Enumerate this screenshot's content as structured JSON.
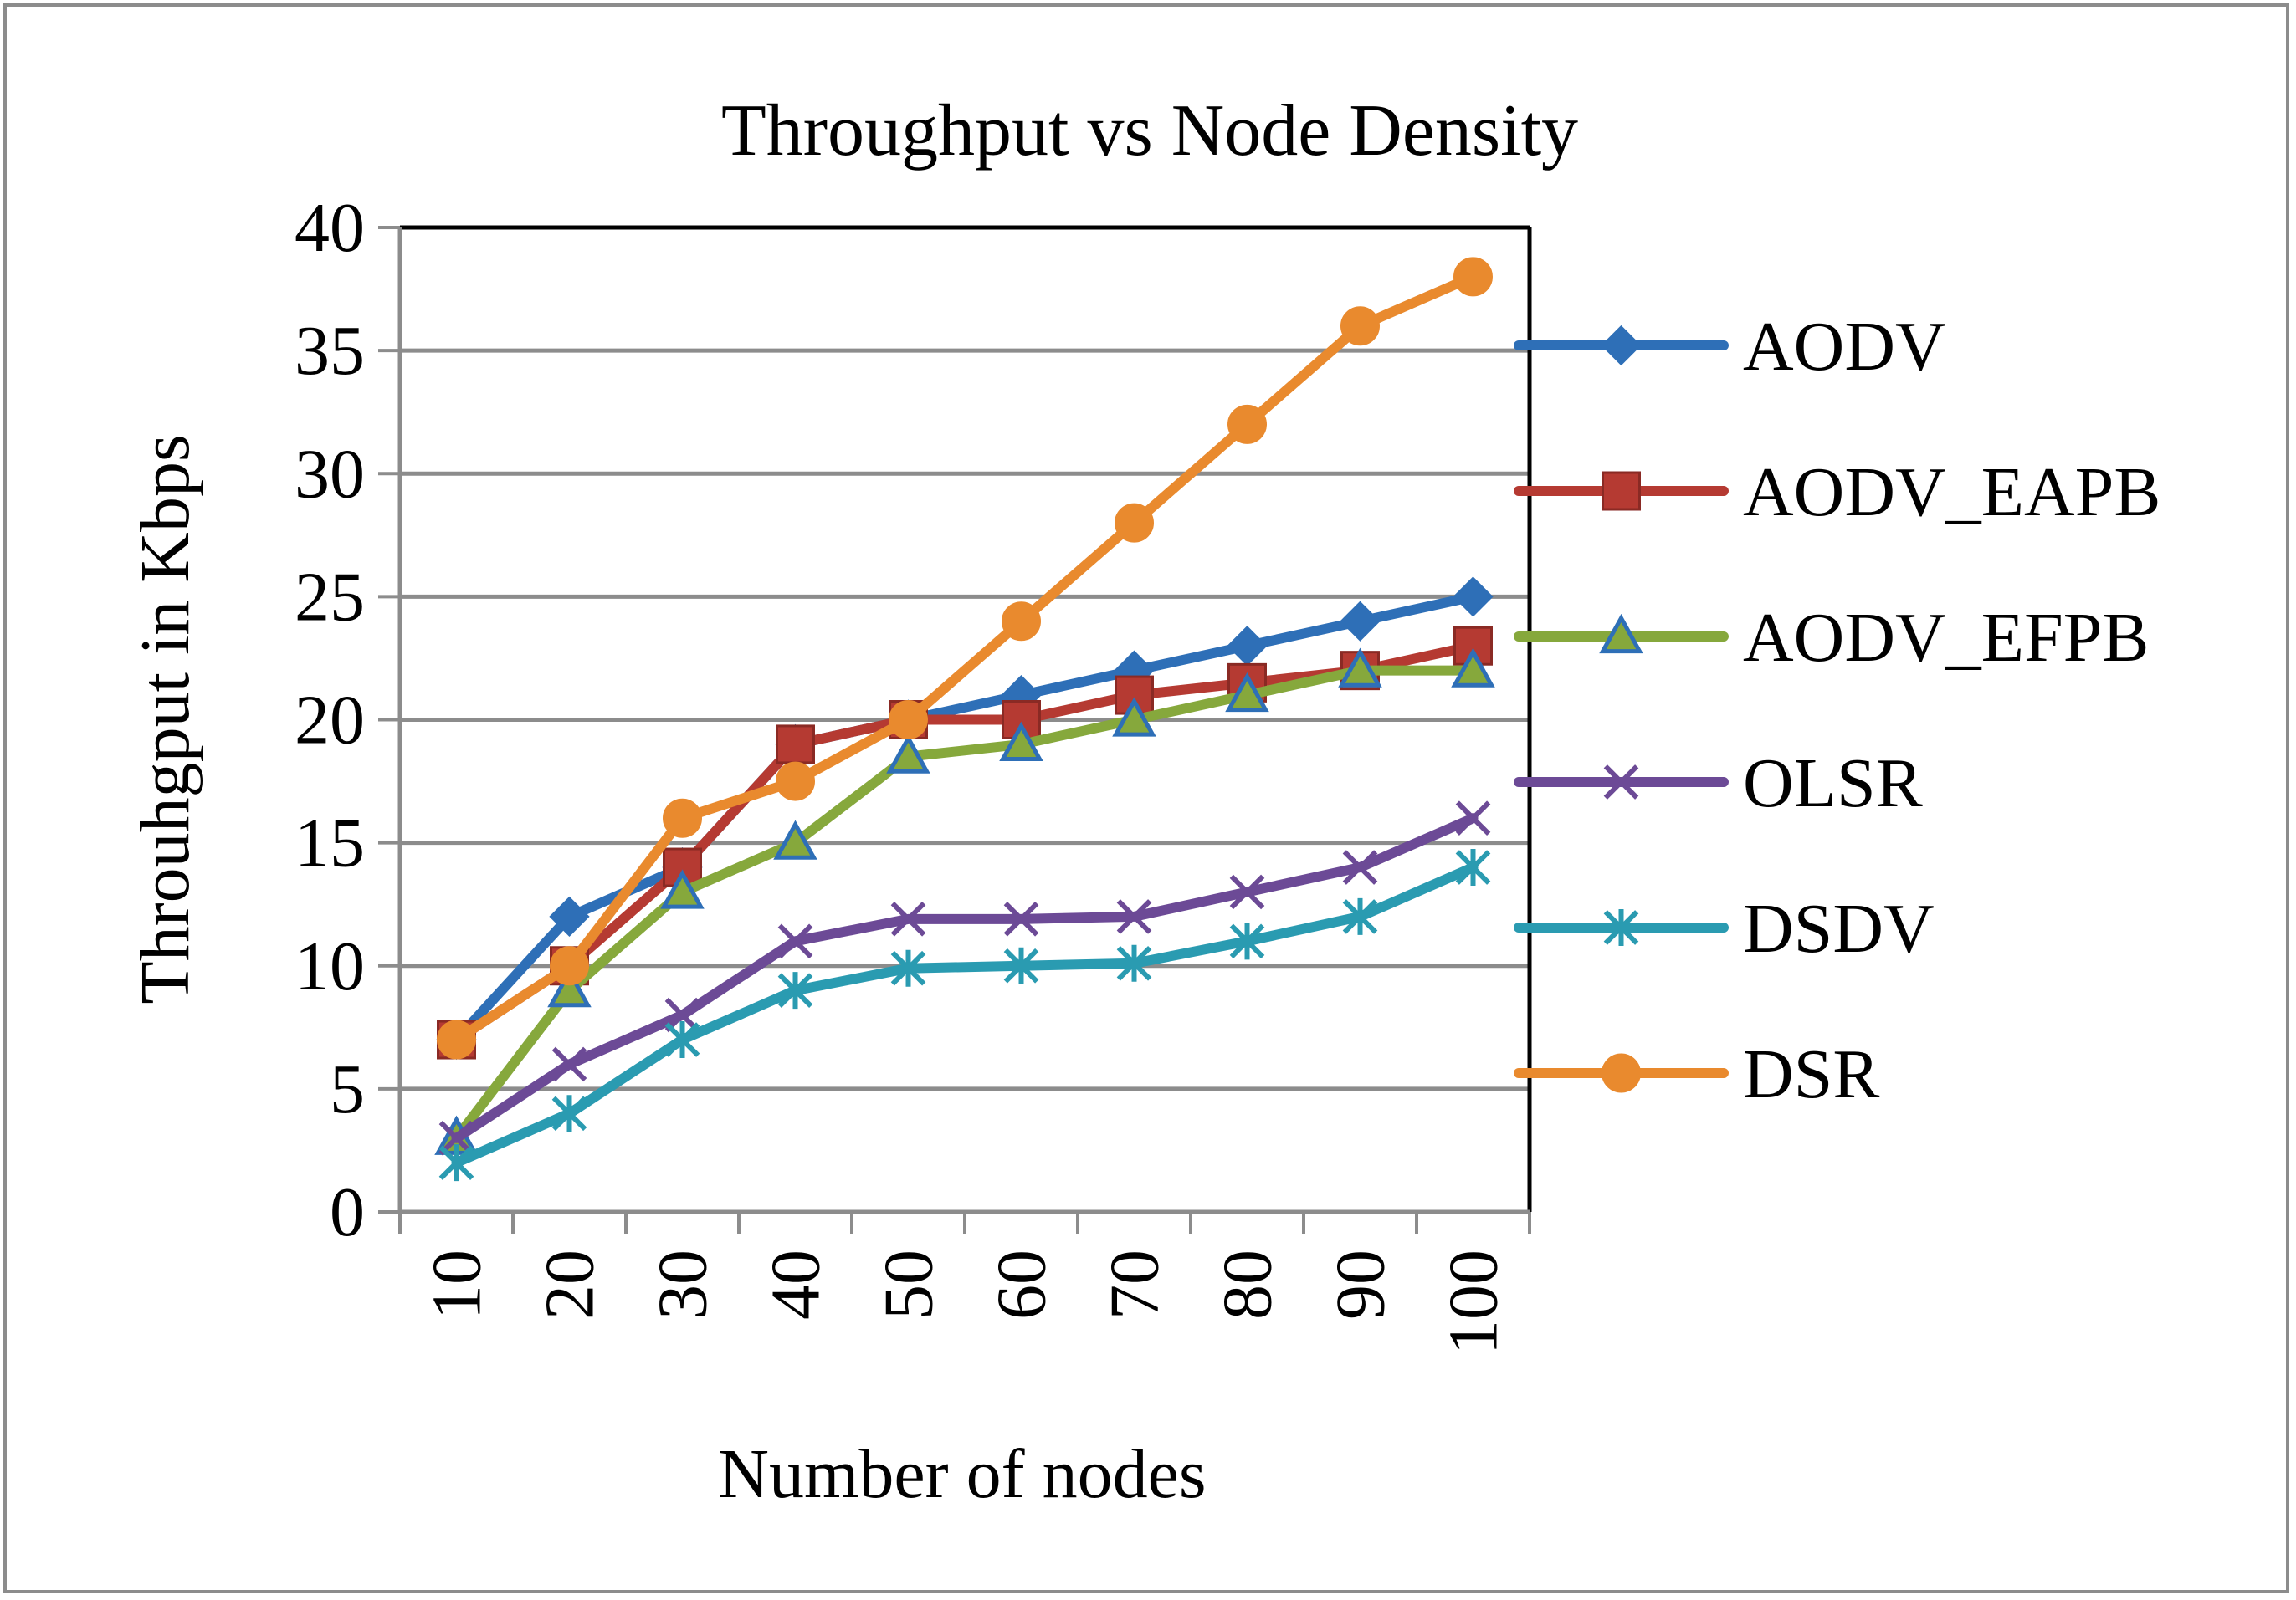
{
  "chart_data": {
    "type": "line",
    "title": "Throughput vs Node Density",
    "xlabel": "Number of nodes",
    "ylabel": "Throuhgput in Kbps",
    "categories": [
      "10",
      "20",
      "30",
      "40",
      "50",
      "60",
      "70",
      "80",
      "90",
      "100"
    ],
    "ylim": [
      0,
      40
    ],
    "yticks": [
      "0",
      "5",
      "10",
      "15",
      "20",
      "25",
      "30",
      "35",
      "40"
    ],
    "grid": true,
    "legend_position": "right",
    "series": [
      {
        "name": "AODV",
        "color": "#2e6fb7",
        "marker": "diamond",
        "values": [
          7,
          12,
          14,
          19,
          20,
          21,
          22,
          23,
          24,
          25
        ]
      },
      {
        "name": "AODV_EAPB",
        "color": "#b53a32",
        "marker": "square",
        "values": [
          7,
          10,
          14,
          19,
          20,
          20,
          21,
          21.5,
          22,
          23
        ]
      },
      {
        "name": "AODV_EFPB",
        "color": "#86a83c",
        "marker": "triangle",
        "values": [
          3,
          9,
          13,
          15,
          18.5,
          19,
          20,
          21,
          22,
          22
        ]
      },
      {
        "name": "OLSR",
        "color": "#6c4a96",
        "marker": "x",
        "values": [
          3,
          6,
          8,
          11,
          11.9,
          11.9,
          12,
          13,
          14,
          16
        ]
      },
      {
        "name": "DSDV",
        "color": "#2a9bb1",
        "marker": "asterisk",
        "values": [
          2,
          4,
          7,
          9,
          9.9,
          10,
          10.1,
          11,
          12,
          14
        ]
      },
      {
        "name": "DSR",
        "color": "#e98a2e",
        "marker": "circle",
        "values": [
          7,
          10,
          16,
          17.5,
          20,
          24,
          28,
          32,
          36,
          38
        ]
      }
    ]
  }
}
